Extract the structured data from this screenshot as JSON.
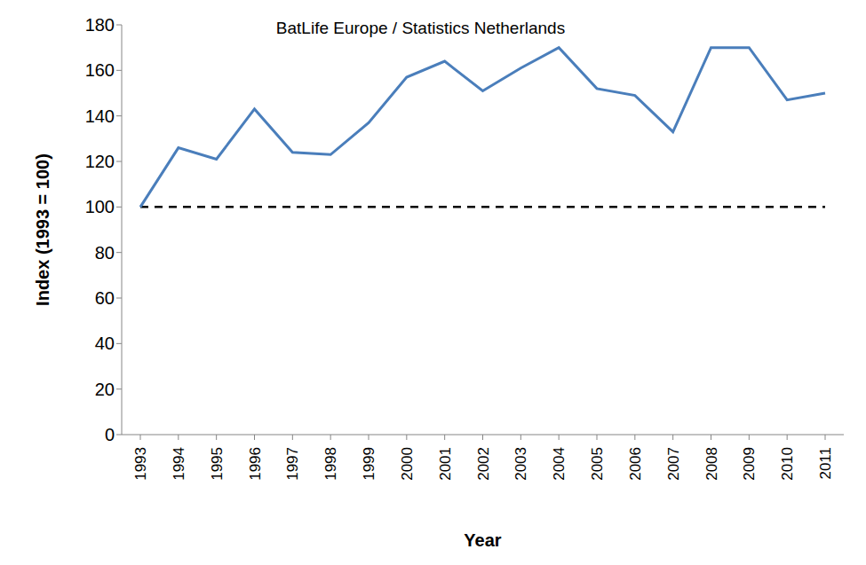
{
  "chart_data": {
    "type": "line",
    "title": "BatLife Europe / Statistics Netherlands",
    "x_label": "Year",
    "y_label": "Index (1993 = 100)",
    "categories": [
      "1993",
      "1994",
      "1995",
      "1996",
      "1997",
      "1998",
      "1999",
      "2000",
      "2001",
      "2002",
      "2003",
      "2004",
      "2005",
      "2006",
      "2007",
      "2008",
      "2009",
      "2010",
      "2011"
    ],
    "values": [
      100,
      126,
      121,
      143,
      124,
      123,
      137,
      157,
      164,
      151,
      161,
      170,
      152,
      149,
      133,
      170,
      170,
      147,
      150
    ],
    "color": "#4a7ebb",
    "baseline": 100,
    "ylim": [
      0,
      180
    ],
    "yticks": [
      0,
      20,
      40,
      60,
      80,
      100,
      120,
      140,
      160,
      180
    ],
    "grid": false
  }
}
